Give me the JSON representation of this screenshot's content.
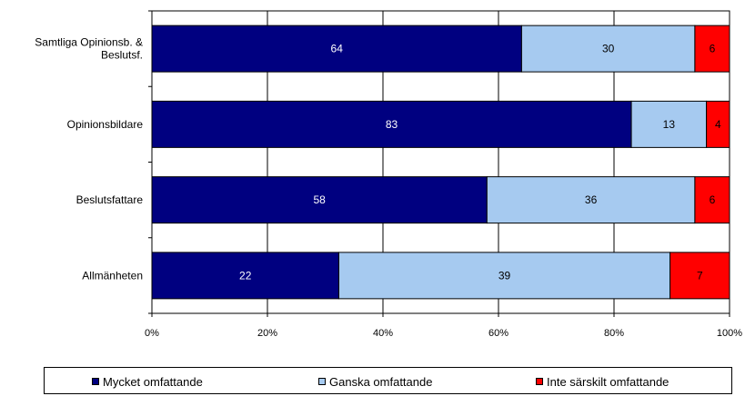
{
  "chart_data": {
    "type": "bar",
    "orientation": "horizontal",
    "stacked": "percent",
    "categories": [
      "Samtliga Opinionsb. & Beslutsf.",
      "Opinionsbildare",
      "Beslutsfattare",
      "Allmänheten"
    ],
    "category_lines": [
      [
        "Samtliga Opinionsb. &",
        "Beslutsf."
      ],
      [
        "Opinionsbildare"
      ],
      [
        "Beslutsfattare"
      ],
      [
        "Allmänheten"
      ]
    ],
    "series": [
      {
        "name": "Mycket omfattande",
        "values": [
          64,
          83,
          58,
          22
        ],
        "color": "#000080",
        "label_color": "#ffffff"
      },
      {
        "name": "Ganska omfattande",
        "values": [
          30,
          13,
          36,
          39
        ],
        "color": "#a6caf0",
        "label_color": "#000000"
      },
      {
        "name": "Inte särskilt omfattande",
        "values": [
          6,
          4,
          6,
          7
        ],
        "color": "#ff0000",
        "label_color": "#000000"
      }
    ],
    "xlim": [
      0,
      100
    ],
    "xticks": [
      "0%",
      "20%",
      "40%",
      "60%",
      "80%",
      "100%"
    ],
    "xlabel": "",
    "ylabel": "",
    "grid": true,
    "legend_position": "bottom"
  }
}
